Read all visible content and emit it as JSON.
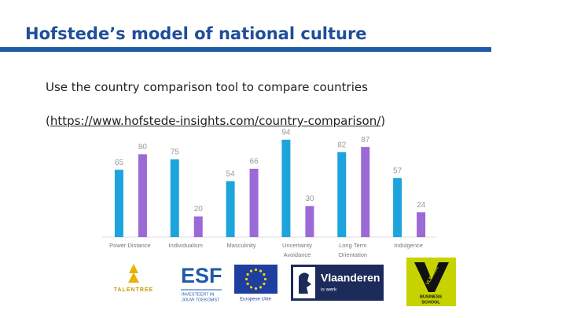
{
  "header": {
    "title": "Hofstede’s model of national culture"
  },
  "body": {
    "text": "Use the country comparison tool to compare countries",
    "link_prefix": "(",
    "link": "https://www.hofstede-insights.com/country-comparison/",
    "link_suffix": ")"
  },
  "chart_data": {
    "type": "bar",
    "categories": [
      "Power Distance",
      "Individualism",
      "Masculinity",
      "Uncertainty Avoidance",
      "Long Term Orientation",
      "Indulgence"
    ],
    "series": [
      {
        "color": "#1ea4dc",
        "values": [
          65,
          75,
          54,
          94,
          82,
          57
        ]
      },
      {
        "color": "#9b6ad6",
        "values": [
          80,
          20,
          66,
          30,
          87,
          24
        ]
      }
    ],
    "ylim": [
      0,
      100
    ],
    "grid": false
  },
  "logos": {
    "talentree": "TALENTREE",
    "esf": {
      "name": "ESF",
      "tagline_1": "INVESTEERT IN",
      "tagline_2": "JOUW TOEKOMST"
    },
    "eu": "Europese Unie",
    "vlaanderen": {
      "name": "Vlaanderen",
      "tagline": "is werk"
    },
    "vlerick": {
      "name": "VLERICK",
      "tagline_1": "BUSINESS",
      "tagline_2": "SCHOOL"
    }
  }
}
